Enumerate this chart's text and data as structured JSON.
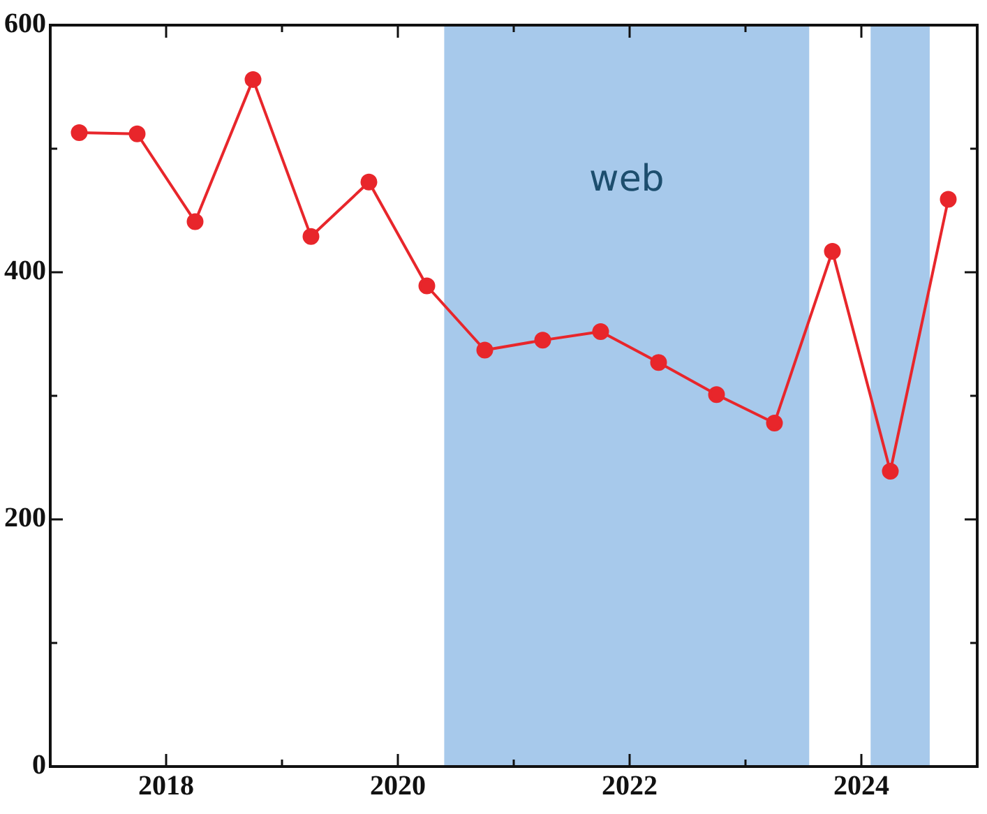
{
  "chart_data": {
    "type": "line",
    "x": [
      2017.25,
      2017.75,
      2018.25,
      2018.75,
      2019.25,
      2019.75,
      2020.25,
      2020.75,
      2021.25,
      2021.75,
      2022.25,
      2022.75,
      2023.25,
      2023.75,
      2024.25,
      2024.75
    ],
    "series": [
      {
        "color": "#e8262b",
        "values": [
          513,
          512,
          441,
          556,
          429,
          473,
          389,
          337,
          345,
          352,
          327,
          301,
          278,
          417,
          239,
          459
        ]
      }
    ],
    "xlim": [
      2017,
      2025
    ],
    "xticks": [
      {
        "value": 2018,
        "label": "2018"
      },
      {
        "value": 2019,
        "label": null
      },
      {
        "value": 2020,
        "label": "2020"
      },
      {
        "value": 2021,
        "label": null
      },
      {
        "value": 2022,
        "label": "2022"
      },
      {
        "value": 2023,
        "label": null
      },
      {
        "value": 2024,
        "label": "2024"
      }
    ],
    "ylim": [
      0,
      600
    ],
    "yticks": [
      0,
      {
        "value": 100,
        "label": null
      },
      200,
      {
        "value": 300,
        "label": null
      },
      400,
      {
        "value": 500,
        "label": null
      },
      600
    ],
    "bands": [
      {
        "axis": "x",
        "from": 2020.4,
        "to": 2023.55,
        "label": "web",
        "color": "#a7c9eb"
      },
      {
        "axis": "x",
        "from": 2024.08,
        "to": 2024.59,
        "label": null,
        "color": "#a7c9eb"
      }
    ],
    "marker": "circle",
    "line_style": "solid",
    "grid": false,
    "legend": false
  }
}
